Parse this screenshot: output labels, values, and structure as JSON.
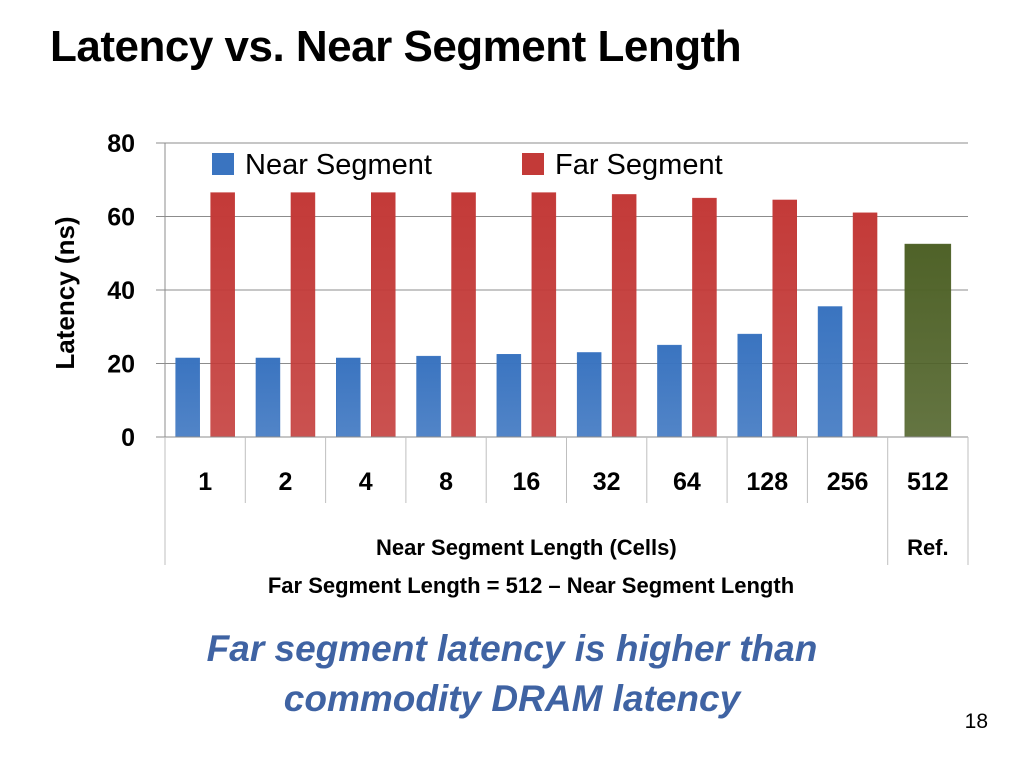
{
  "slide": {
    "title": "Latency vs. Near Segment Length",
    "takeaway_line1": "Far segment latency is higher than",
    "takeaway_line2": "commodity DRAM latency",
    "page_number": "18"
  },
  "chart_data": {
    "type": "bar",
    "categories": [
      "1",
      "2",
      "4",
      "8",
      "16",
      "32",
      "64",
      "128",
      "256",
      "512"
    ],
    "series": [
      {
        "name": "Near Segment",
        "color": "#3a74c0",
        "values": [
          21.5,
          21.5,
          21.5,
          22,
          22.5,
          23,
          25,
          28,
          35.5,
          null
        ]
      },
      {
        "name": "Far Segment",
        "color": "#c33a38",
        "values": [
          66.5,
          66.5,
          66.5,
          66.5,
          66.5,
          66,
          65,
          64.5,
          61,
          null
        ]
      },
      {
        "name": "",
        "color": "#4f6228",
        "values": [
          null,
          null,
          null,
          null,
          null,
          null,
          null,
          null,
          null,
          52.5
        ]
      }
    ],
    "ylabel": "Latency (ns)",
    "ylim": [
      0,
      80
    ],
    "yticks": [
      0,
      20,
      40,
      60,
      80
    ],
    "group_labels": [
      "Near Segment Length (Cells)",
      "Ref."
    ],
    "xlabel": "Far Segment Length = 512 – Near Segment Length",
    "grid": true,
    "legend_position": "top"
  }
}
